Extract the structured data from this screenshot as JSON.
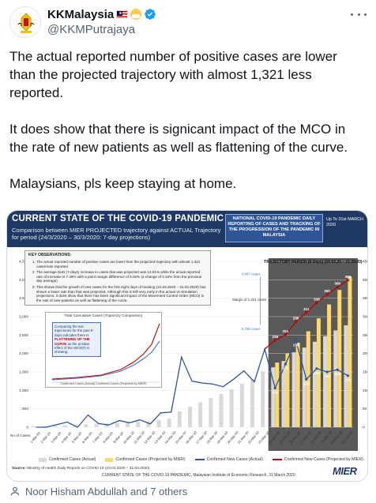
{
  "tweet": {
    "display_name": "KKMalaysia",
    "handle": "@KKMPutrajaya",
    "paragraphs": [
      "The actual reported number of positive cases are lower than the projected trajectory with almost 1,321 less reported.",
      "It does show that there is signicant impact of the MCO in the rate of new patients as well as flattening of the curve.",
      "Malaysians, pls keep staying at home."
    ],
    "liked_by": "Noor Hisham Abdullah and 7 others"
  },
  "icons": {
    "avatar": "ministry-crest-icon",
    "flag": "malaysia-flag-icon",
    "mask": "mask-face-icon",
    "verified": "verified-badge-icon",
    "more": "more-options-icon",
    "person": "person-icon"
  },
  "colors": {
    "verified": "#1d9bf0",
    "header_bg": "#1f3864",
    "confirmed_actual": "#e7e6e6",
    "confirmed_mier": "#ffd966",
    "new_actual": "#2f5597",
    "new_mier": "#c00000"
  },
  "infographic": {
    "title": "CURRENT STATE OF THE COVID-19 PANDEMIC",
    "subtitle": "Comparison between MIER PROJECTED trajectory against ACTUAL Trajectory for period (24/3/2020 – 30/3/2020: 7-day projections)",
    "box_text": "NATIONAL COVID-19 PANDEMIC DAILY REPORTING OF CASES AND TRACKING OF THE PROGRESSION OF THE PANDEMIC IN MALAYSIA",
    "date_text": "Up To 31st MARCH 2020",
    "observations_title": "KEY OBSERVATIONS:",
    "observations": [
      "The actual reported number of positive cases are lower than the projected trajectory with almost 1,321 cases less reported.",
      "The average DoD (7-days) increase in cases that was projected was 12.51% while the actual reported rate of increase is 7.49% with a point margin difference of 5.02% (a change of 0.34% from the previous day average)",
      "This shows that the growth of new cases for the first eight days of tracking (24.03.2020 – 31.03.2020) has shown a lower rate than that was projected. Although this is still very early in the actual vs simulation projections, it does show that there has been significant impact of the Movement Control Order (MCO) in the rate of new patients as well as flattening of the curve."
    ],
    "inset_title": "Total Cumulative Cases (Trajectory Comparison)",
    "inset_callout_pre": "Comparing the two trajectories for the past 8-days indicates there is",
    "inset_callout_bold": "FLATTENING OF THE CURVE",
    "inset_callout_post": "as the positive effect of the MCO(#) is showing.",
    "inset_legend": "Confirmed Cases (Actual)   Confirmed Cases (Projected by MIER)",
    "projection_title": "TRAJECTORY PERIOD (8-Days) (24.03.20 – 31.03.20)",
    "margin_label": "Margin of 1,321 cases",
    "proj_top_label": "4,087 cases",
    "proj_bottom_label": "2,766 cases",
    "no_of_cases": "No of Cases",
    "source_label": "Source:",
    "source_text": "Ministry of Health Daily Reports on COVID-19 (23.01.2020 – 31.03.2020)",
    "footer": "CURRENT STATE OF THE COVID-19 PANDEMIC, Malaysian Institute of Economic Research, 31 March 2020",
    "logo": "MIER"
  },
  "chart_data": {
    "type": "bar",
    "left_axis": {
      "label": "No of Cases",
      "ticks": [
        0,
        500,
        1000,
        1500,
        2000,
        2500,
        3000,
        3500,
        4000,
        4500
      ],
      "ylim": [
        0,
        4500
      ]
    },
    "right_axis": {
      "ticks": [
        0,
        50,
        100,
        150,
        200,
        250,
        300,
        350,
        400,
        450
      ],
      "ylim": [
        0,
        450
      ]
    },
    "categories": [
      "1-Mar-20",
      "2-Mar-20",
      "3-Mar-20",
      "4-Mar-20",
      "5-Mar-20",
      "6-Mar-20",
      "7-Mar-20",
      "8-Mar-20",
      "9-Mar-20",
      "10-Mar-20",
      "11-Mar-20",
      "12-Mar-20",
      "13-Mar-20",
      "14-Mar-20",
      "15-Mar-20",
      "16-Mar-20",
      "17-Mar-20",
      "18-Mar-20",
      "19-Mar-20",
      "20-Mar-20",
      "21-Mar-20",
      "22-Mar-20",
      "23-Mar-20",
      "24-Mar-20",
      "25-Mar-20",
      "26-Mar-20",
      "27-Mar-20",
      "28-Mar-20",
      "29-Mar-20",
      "30-Mar-20",
      "31-Mar-20"
    ],
    "series": [
      {
        "name": "Confirmed Cases (Actual)",
        "kind": "bar",
        "axis": "left",
        "values": [
          29,
          29,
          36,
          50,
          50,
          83,
          93,
          99,
          117,
          129,
          149,
          158,
          197,
          238,
          428,
          553,
          673,
          790,
          900,
          1030,
          1183,
          1306,
          1518,
          1624,
          1796,
          2031,
          2161,
          2320,
          2470,
          2626,
          2766
        ]
      },
      {
        "name": "Confirmed Cases (Projected by MIER)",
        "kind": "bar",
        "axis": "left",
        "values": [
          null,
          null,
          null,
          null,
          null,
          null,
          null,
          null,
          null,
          null,
          null,
          null,
          null,
          null,
          null,
          null,
          null,
          null,
          null,
          null,
          null,
          null,
          null,
          1754,
          2005,
          2292,
          2604,
          2954,
          3331,
          3724,
          4087
        ]
      },
      {
        "name": "Confirmed New Cases (Actual)",
        "kind": "line",
        "axis": "right",
        "values": [
          0,
          0,
          7,
          14,
          0,
          33,
          10,
          6,
          18,
          12,
          20,
          9,
          39,
          41,
          190,
          125,
          120,
          117,
          110,
          130,
          153,
          123,
          212,
          106,
          172,
          235,
          130,
          159,
          150,
          156,
          140
        ]
      },
      {
        "name": "Confirmed New Cases (Projected by MIER)",
        "kind": "line",
        "axis": "right",
        "values": [
          null,
          null,
          null,
          null,
          null,
          null,
          null,
          null,
          null,
          null,
          null,
          null,
          null,
          null,
          null,
          null,
          null,
          null,
          null,
          null,
          null,
          null,
          212,
          236,
          251,
          286,
          311,
          338,
          360,
          380,
          399
        ]
      }
    ],
    "legend": "bottom",
    "grid": true
  }
}
